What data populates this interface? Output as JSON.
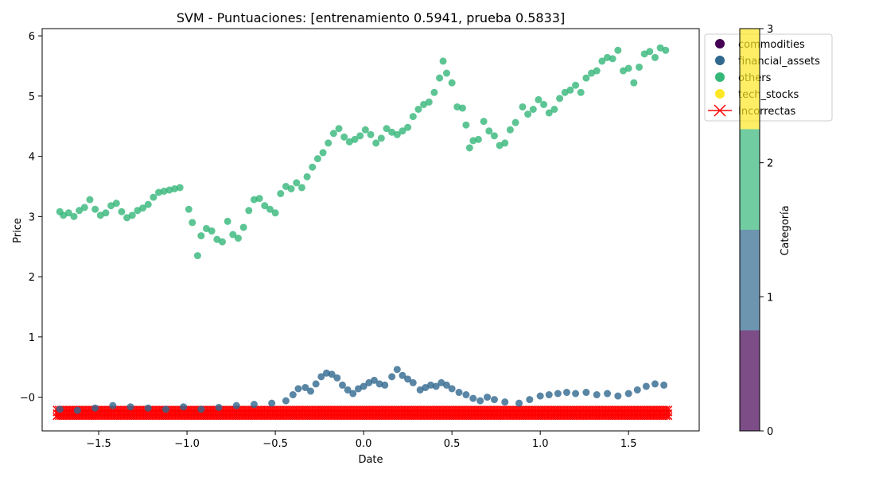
{
  "chart_data": {
    "type": "scatter",
    "title": "SVM - Puntuaciones: [entrenamiento 0.5941, prueba 0.5833]",
    "xlabel": "Date",
    "ylabel": "Price",
    "xlim": [
      -1.82,
      1.9
    ],
    "ylim": [
      -0.56,
      6.12
    ],
    "xticks": [
      -1.5,
      -1.0,
      -0.5,
      0.0,
      0.5,
      1.0,
      1.5
    ],
    "xtick_labels": [
      "−1.5",
      "−1.0",
      "−0.5",
      "0.0",
      "0.5",
      "1.0",
      "1.5"
    ],
    "yticks": [
      0,
      1,
      2,
      3,
      4,
      5,
      6
    ],
    "ytick_labels": [
      "−0",
      "1",
      "2",
      "3",
      "4",
      "5",
      "6"
    ],
    "grid": false,
    "legend": {
      "placement": "top-right",
      "entries": [
        {
          "label": "commodities",
          "color": "#440154",
          "marker": "circle"
        },
        {
          "label": "financial_assets",
          "color": "#31688e",
          "marker": "circle"
        },
        {
          "label": "others",
          "color": "#35b779",
          "marker": "circle"
        },
        {
          "label": "tech_stocks",
          "color": "#fde725",
          "marker": "circle"
        },
        {
          "label": "Incorrectas",
          "color": "#ff0000",
          "marker": "x-line"
        }
      ]
    },
    "colorbar": {
      "label": "Categoría",
      "ticks": [
        "0",
        "1",
        "2",
        "3"
      ],
      "colors": [
        "#440154",
        "#31688e",
        "#35b779",
        "#fde725"
      ]
    },
    "series": [
      {
        "name": "others",
        "color": "#35b779",
        "points": [
          [
            -1.72,
            3.08
          ],
          [
            -1.7,
            3.02
          ],
          [
            -1.67,
            3.06
          ],
          [
            -1.64,
            3.0
          ],
          [
            -1.61,
            3.1
          ],
          [
            -1.58,
            3.15
          ],
          [
            -1.55,
            3.28
          ],
          [
            -1.52,
            3.12
          ],
          [
            -1.49,
            3.02
          ],
          [
            -1.46,
            3.06
          ],
          [
            -1.43,
            3.18
          ],
          [
            -1.4,
            3.22
          ],
          [
            -1.37,
            3.08
          ],
          [
            -1.34,
            2.98
          ],
          [
            -1.31,
            3.02
          ],
          [
            -1.28,
            3.1
          ],
          [
            -1.25,
            3.14
          ],
          [
            -1.22,
            3.2
          ],
          [
            -1.19,
            3.32
          ],
          [
            -1.16,
            3.4
          ],
          [
            -1.13,
            3.42
          ],
          [
            -1.1,
            3.44
          ],
          [
            -1.07,
            3.46
          ],
          [
            -1.04,
            3.48
          ],
          [
            -0.99,
            3.12
          ],
          [
            -0.97,
            2.9
          ],
          [
            -0.94,
            2.35
          ],
          [
            -0.92,
            2.68
          ],
          [
            -0.89,
            2.8
          ],
          [
            -0.86,
            2.76
          ],
          [
            -0.83,
            2.62
          ],
          [
            -0.8,
            2.58
          ],
          [
            -0.77,
            2.92
          ],
          [
            -0.74,
            2.7
          ],
          [
            -0.71,
            2.64
          ],
          [
            -0.68,
            2.82
          ],
          [
            -0.65,
            3.1
          ],
          [
            -0.62,
            3.28
          ],
          [
            -0.59,
            3.3
          ],
          [
            -0.56,
            3.18
          ],
          [
            -0.53,
            3.12
          ],
          [
            -0.5,
            3.06
          ],
          [
            -0.47,
            3.38
          ],
          [
            -0.44,
            3.5
          ],
          [
            -0.41,
            3.46
          ],
          [
            -0.38,
            3.56
          ],
          [
            -0.35,
            3.48
          ],
          [
            -0.32,
            3.66
          ],
          [
            -0.29,
            3.82
          ],
          [
            -0.26,
            3.96
          ],
          [
            -0.23,
            4.06
          ],
          [
            -0.2,
            4.22
          ],
          [
            -0.17,
            4.38
          ],
          [
            -0.14,
            4.46
          ],
          [
            -0.11,
            4.32
          ],
          [
            -0.08,
            4.24
          ],
          [
            -0.05,
            4.28
          ],
          [
            -0.02,
            4.34
          ],
          [
            0.01,
            4.44
          ],
          [
            0.04,
            4.36
          ],
          [
            0.07,
            4.22
          ],
          [
            0.1,
            4.3
          ],
          [
            0.13,
            4.46
          ],
          [
            0.16,
            4.4
          ],
          [
            0.19,
            4.36
          ],
          [
            0.22,
            4.42
          ],
          [
            0.25,
            4.48
          ],
          [
            0.28,
            4.66
          ],
          [
            0.31,
            4.78
          ],
          [
            0.34,
            4.86
          ],
          [
            0.37,
            4.9
          ],
          [
            0.4,
            5.06
          ],
          [
            0.43,
            5.3
          ],
          [
            0.45,
            5.58
          ],
          [
            0.47,
            5.38
          ],
          [
            0.5,
            5.22
          ],
          [
            0.53,
            4.82
          ],
          [
            0.56,
            4.8
          ],
          [
            0.58,
            4.52
          ],
          [
            0.6,
            4.14
          ],
          [
            0.62,
            4.26
          ],
          [
            0.65,
            4.28
          ],
          [
            0.68,
            4.58
          ],
          [
            0.71,
            4.42
          ],
          [
            0.74,
            4.34
          ],
          [
            0.77,
            4.18
          ],
          [
            0.8,
            4.22
          ],
          [
            0.83,
            4.44
          ],
          [
            0.86,
            4.56
          ],
          [
            0.9,
            4.82
          ],
          [
            0.93,
            4.7
          ],
          [
            0.96,
            4.78
          ],
          [
            0.99,
            4.94
          ],
          [
            1.02,
            4.86
          ],
          [
            1.05,
            4.72
          ],
          [
            1.08,
            4.78
          ],
          [
            1.11,
            4.96
          ],
          [
            1.14,
            5.06
          ],
          [
            1.17,
            5.1
          ],
          [
            1.2,
            5.18
          ],
          [
            1.23,
            5.06
          ],
          [
            1.26,
            5.3
          ],
          [
            1.29,
            5.38
          ],
          [
            1.32,
            5.42
          ],
          [
            1.35,
            5.58
          ],
          [
            1.38,
            5.64
          ],
          [
            1.41,
            5.62
          ],
          [
            1.44,
            5.76
          ],
          [
            1.47,
            5.42
          ],
          [
            1.5,
            5.46
          ],
          [
            1.53,
            5.22
          ],
          [
            1.56,
            5.48
          ],
          [
            1.59,
            5.7
          ],
          [
            1.62,
            5.74
          ],
          [
            1.65,
            5.64
          ],
          [
            1.68,
            5.8
          ],
          [
            1.71,
            5.76
          ]
        ]
      },
      {
        "name": "financial_assets",
        "color": "#31688e",
        "points": [
          [
            -1.72,
            -0.2
          ],
          [
            -1.62,
            -0.22
          ],
          [
            -1.52,
            -0.18
          ],
          [
            -1.42,
            -0.14
          ],
          [
            -1.32,
            -0.16
          ],
          [
            -1.22,
            -0.18
          ],
          [
            -1.12,
            -0.2
          ],
          [
            -1.02,
            -0.16
          ],
          [
            -0.92,
            -0.2
          ],
          [
            -0.82,
            -0.17
          ],
          [
            -0.72,
            -0.14
          ],
          [
            -0.62,
            -0.12
          ],
          [
            -0.52,
            -0.1
          ],
          [
            -0.44,
            -0.06
          ],
          [
            -0.4,
            0.04
          ],
          [
            -0.37,
            0.14
          ],
          [
            -0.33,
            0.16
          ],
          [
            -0.3,
            0.1
          ],
          [
            -0.27,
            0.22
          ],
          [
            -0.24,
            0.34
          ],
          [
            -0.21,
            0.4
          ],
          [
            -0.18,
            0.38
          ],
          [
            -0.15,
            0.32
          ],
          [
            -0.12,
            0.2
          ],
          [
            -0.09,
            0.12
          ],
          [
            -0.06,
            0.06
          ],
          [
            -0.03,
            0.14
          ],
          [
            0.0,
            0.18
          ],
          [
            0.03,
            0.24
          ],
          [
            0.06,
            0.28
          ],
          [
            0.09,
            0.22
          ],
          [
            0.12,
            0.2
          ],
          [
            0.16,
            0.34
          ],
          [
            0.19,
            0.46
          ],
          [
            0.22,
            0.36
          ],
          [
            0.25,
            0.3
          ],
          [
            0.28,
            0.24
          ],
          [
            0.32,
            0.12
          ],
          [
            0.35,
            0.16
          ],
          [
            0.38,
            0.2
          ],
          [
            0.41,
            0.18
          ],
          [
            0.44,
            0.24
          ],
          [
            0.47,
            0.2
          ],
          [
            0.5,
            0.14
          ],
          [
            0.54,
            0.08
          ],
          [
            0.58,
            0.04
          ],
          [
            0.62,
            -0.02
          ],
          [
            0.66,
            -0.06
          ],
          [
            0.7,
            0.0
          ],
          [
            0.74,
            -0.04
          ],
          [
            0.8,
            -0.08
          ],
          [
            0.88,
            -0.1
          ],
          [
            0.94,
            -0.04
          ],
          [
            1.0,
            0.02
          ],
          [
            1.05,
            0.04
          ],
          [
            1.1,
            0.06
          ],
          [
            1.15,
            0.08
          ],
          [
            1.2,
            0.06
          ],
          [
            1.26,
            0.08
          ],
          [
            1.32,
            0.04
          ],
          [
            1.38,
            0.06
          ],
          [
            1.44,
            0.02
          ],
          [
            1.5,
            0.06
          ],
          [
            1.55,
            0.12
          ],
          [
            1.6,
            0.18
          ],
          [
            1.65,
            0.22
          ],
          [
            1.7,
            0.2
          ]
        ]
      }
    ],
    "incorrect_band": {
      "x": [
        -1.74,
        1.74
      ],
      "y": [
        -0.32,
        -0.2
      ]
    }
  }
}
